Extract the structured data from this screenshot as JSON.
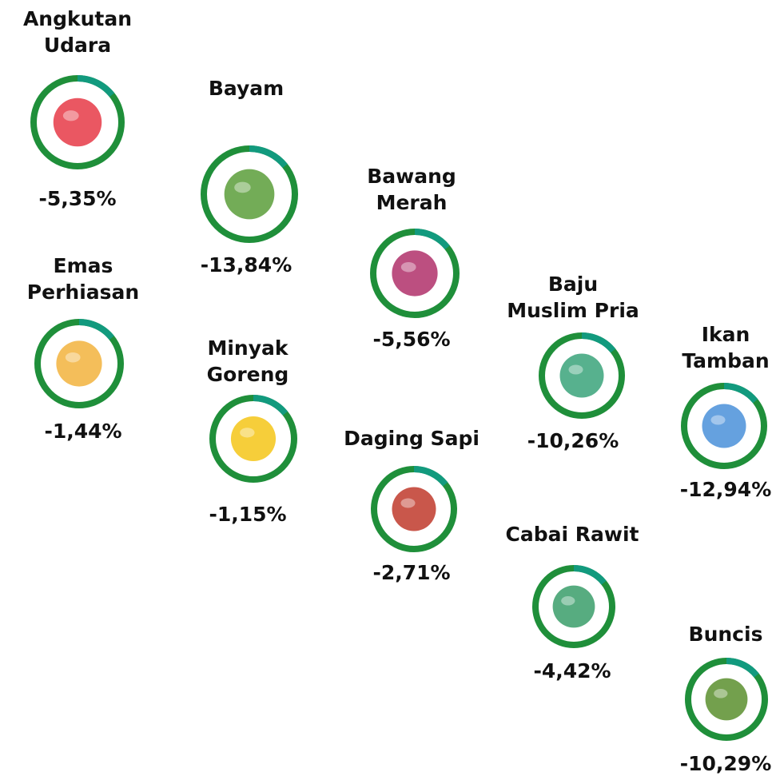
{
  "items": [
    {
      "name": [
        "Angkutan",
        "Udara"
      ],
      "value": "-5,35%"
    },
    {
      "name": [
        "Bayam"
      ],
      "value": "-13,84%"
    },
    {
      "name": [
        "Bawang",
        "Merah"
      ],
      "value": "-5,56%"
    },
    {
      "name": [
        "Baju",
        "Muslim Pria"
      ],
      "value": "-10,26%"
    },
    {
      "name": [
        "Ikan",
        "Tamban"
      ],
      "value": "-12,94%"
    },
    {
      "name": [
        "Emas",
        "Perhiasan"
      ],
      "value": "-1,44%"
    },
    {
      "name": [
        "Minyak",
        "Goreng"
      ],
      "value": "-1,15%"
    },
    {
      "name": [
        "Daging Sapi"
      ],
      "value": "-2,71%"
    },
    {
      "name": [
        "Cabai Rawit"
      ],
      "value": "-4,42%"
    },
    {
      "name": [
        "Buncis"
      ],
      "value": "-10,29%"
    }
  ]
}
